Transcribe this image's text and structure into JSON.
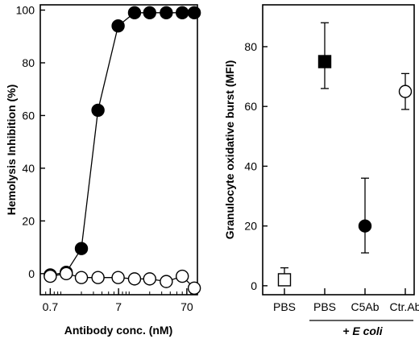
{
  "chart_data": [
    {
      "type": "line",
      "title": "",
      "xlabel": "Antibody conc. (nM)",
      "ylabel": "Hemolysis Inhibition (%)",
      "x_scale": "log",
      "xlim": [
        0.5,
        100
      ],
      "ylim": [
        -8,
        102
      ],
      "x_ticks": [
        0.7,
        7,
        70
      ],
      "x_tick_labels": [
        "0.7",
        "7",
        "70"
      ],
      "y_ticks": [
        0,
        20,
        40,
        60,
        80,
        100
      ],
      "y_tick_labels": [
        "0",
        "20",
        "40",
        "60",
        "80",
        "100"
      ],
      "grid": false,
      "series": [
        {
          "marker": "filled-circle",
          "color": "#000000",
          "x": [
            0.7,
            1.2,
            2.0,
            3.5,
            6.9,
            12,
            20,
            35,
            60,
            90
          ],
          "y": [
            -0.5,
            0.5,
            9.5,
            62,
            94,
            99,
            99,
            99,
            99,
            99
          ]
        },
        {
          "marker": "open-circle",
          "color": "#000000",
          "x": [
            0.7,
            1.2,
            2.0,
            3.5,
            6.9,
            12,
            20,
            35,
            60,
            90
          ],
          "y": [
            -1,
            0,
            -1.5,
            -1.5,
            -1.5,
            -2,
            -2,
            -3,
            -1,
            -5.5
          ]
        }
      ]
    },
    {
      "type": "scatter",
      "title": "",
      "xlabel": "",
      "ylabel": "Granulocyte oxidative burst (MFI)",
      "categories": [
        "PBS",
        "PBS",
        "C5Ab",
        "Ctr.Ab"
      ],
      "group_label": "+ E coli",
      "ylim": [
        -3,
        94
      ],
      "y_ticks": [
        0,
        20,
        40,
        60,
        80
      ],
      "y_tick_labels": [
        "0",
        "20",
        "40",
        "60",
        "80"
      ],
      "grid": false,
      "points": [
        {
          "category": "PBS",
          "value": 2,
          "err_low": 0,
          "err_high": 6,
          "marker": "open-square"
        },
        {
          "category": "PBS",
          "value": 75,
          "err_low": 66,
          "err_high": 88,
          "marker": "filled-square"
        },
        {
          "category": "C5Ab",
          "value": 20,
          "err_low": 11,
          "err_high": 36,
          "marker": "filled-circle"
        },
        {
          "category": "Ctr.Ab",
          "value": 65,
          "err_low": 59,
          "err_high": 71,
          "marker": "open-circle"
        }
      ]
    }
  ]
}
